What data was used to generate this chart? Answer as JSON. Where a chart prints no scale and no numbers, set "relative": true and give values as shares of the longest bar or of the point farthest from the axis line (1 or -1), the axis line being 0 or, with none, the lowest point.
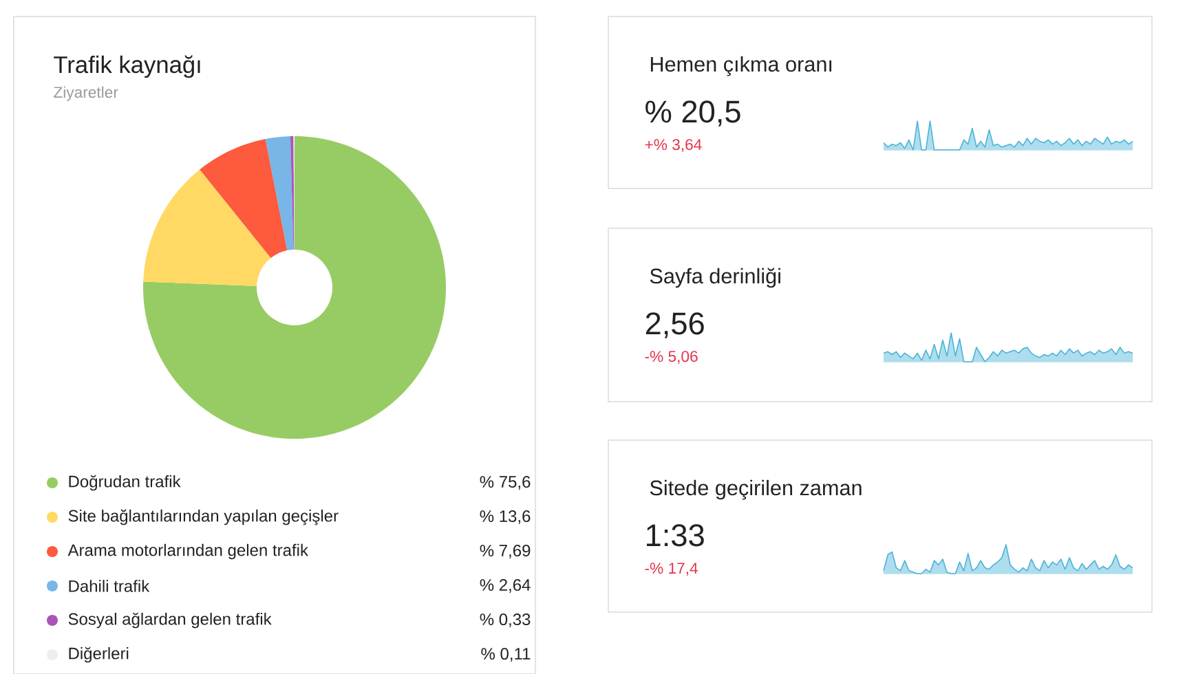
{
  "chart_data": [
    {
      "type": "donut",
      "title": "Trafik kaynağı",
      "subtitle": "Ziyaretler",
      "categories": [
        "Doğrudan trafik",
        "Site bağlantılarından yapılan geçişler",
        "Arama motorlarından gelen trafik",
        "Dahili trafik",
        "Sosyal ağlardan gelen trafik",
        "Diğerleri"
      ],
      "values": [
        75.6,
        13.6,
        7.69,
        2.64,
        0.33,
        0.11
      ],
      "value_labels": [
        "% 75,6",
        "% 13,6",
        "% 7,69",
        "% 2,64",
        "% 0,33",
        "% 0,11"
      ],
      "colors": [
        "#97cc64",
        "#ffd963",
        "#fd5a3e",
        "#77b6e7",
        "#a955b8",
        "#eeeeee"
      ],
      "legend": "bottom"
    },
    {
      "type": "area",
      "title": "Hemen çıkma oranı",
      "annotations": [
        "% 20,5",
        "+% 3,64"
      ],
      "relative": true,
      "color": "#4ab3d8",
      "categories": [
        null,
        null,
        null,
        null,
        null,
        null,
        null,
        null,
        null,
        null,
        null,
        null,
        null,
        null,
        null,
        null,
        null,
        null,
        null,
        null,
        null,
        null,
        null,
        null,
        null,
        null,
        null,
        null,
        null,
        null,
        null,
        null,
        null,
        null,
        null,
        null,
        null,
        null,
        null,
        null,
        null,
        null,
        null,
        null,
        null,
        null,
        null,
        null,
        null,
        null,
        null,
        null,
        null,
        null,
        null,
        null,
        null,
        null,
        null,
        null
      ],
      "values": [
        0.25,
        0.1,
        0.2,
        0.15,
        0.25,
        0.05,
        0.35,
        0,
        1,
        0,
        0,
        1,
        0,
        0,
        0,
        0,
        0,
        0,
        0,
        0.35,
        0.2,
        0.75,
        0.1,
        0.3,
        0.1,
        0.7,
        0.15,
        0.2,
        0.1,
        0.15,
        0.2,
        0.1,
        0.3,
        0.15,
        0.4,
        0.2,
        0.4,
        0.3,
        0.25,
        0.35,
        0.2,
        0.3,
        0.15,
        0.25,
        0.4,
        0.2,
        0.35,
        0.15,
        0.3,
        0.2,
        0.4,
        0.3,
        0.2,
        0.45,
        0.2,
        0.3,
        0.25,
        0.35,
        0.2,
        0.3
      ]
    },
    {
      "type": "area",
      "title": "Sayfa derinliği",
      "annotations": [
        "2,56",
        "-% 5,06"
      ],
      "relative": true,
      "color": "#4ab3d8",
      "categories": [
        null,
        null,
        null,
        null,
        null,
        null,
        null,
        null,
        null,
        null,
        null,
        null,
        null,
        null,
        null,
        null,
        null,
        null,
        null,
        null,
        null,
        null,
        null,
        null,
        null,
        null,
        null,
        null,
        null,
        null,
        null,
        null,
        null,
        null,
        null,
        null,
        null,
        null,
        null,
        null,
        null,
        null,
        null,
        null,
        null,
        null,
        null,
        null,
        null,
        null,
        null,
        null,
        null,
        null,
        null,
        null,
        null,
        null,
        null,
        null
      ],
      "values": [
        0.3,
        0.35,
        0.25,
        0.35,
        0.15,
        0.3,
        0.2,
        0.1,
        0.3,
        0.05,
        0.4,
        0.1,
        0.6,
        0.1,
        0.75,
        0.2,
        1,
        0.2,
        0.8,
        0,
        0,
        0,
        0.5,
        0.25,
        0,
        0.15,
        0.35,
        0.2,
        0.4,
        0.3,
        0.35,
        0.4,
        0.3,
        0.45,
        0.5,
        0.3,
        0.2,
        0.15,
        0.25,
        0.2,
        0.3,
        0.2,
        0.4,
        0.25,
        0.45,
        0.3,
        0.4,
        0.2,
        0.3,
        0.35,
        0.25,
        0.4,
        0.3,
        0.35,
        0.45,
        0.25,
        0.5,
        0.3,
        0.35,
        0.3
      ]
    },
    {
      "type": "area",
      "title": "Sitede geçirilen zaman",
      "annotations": [
        "1:33",
        "-% 17,4"
      ],
      "relative": true,
      "color": "#4ab3d8",
      "categories": [
        null,
        null,
        null,
        null,
        null,
        null,
        null,
        null,
        null,
        null,
        null,
        null,
        null,
        null,
        null,
        null,
        null,
        null,
        null,
        null,
        null,
        null,
        null,
        null,
        null,
        null,
        null,
        null,
        null,
        null,
        null,
        null,
        null,
        null,
        null,
        null,
        null,
        null,
        null,
        null,
        null,
        null,
        null,
        null,
        null,
        null,
        null,
        null,
        null,
        null,
        null,
        null,
        null,
        null,
        null,
        null,
        null,
        null,
        null,
        null
      ],
      "values": [
        0.1,
        0.65,
        0.75,
        0.2,
        0.1,
        0.45,
        0.1,
        0.05,
        0,
        0,
        0.15,
        0.05,
        0.45,
        0.3,
        0.5,
        0.05,
        0,
        0,
        0.4,
        0.1,
        0.7,
        0.1,
        0.2,
        0.45,
        0.2,
        0.15,
        0.3,
        0.4,
        0.55,
        1,
        0.3,
        0.15,
        0.05,
        0.2,
        0.1,
        0.5,
        0.2,
        0.1,
        0.45,
        0.2,
        0.4,
        0.3,
        0.5,
        0.15,
        0.55,
        0.2,
        0.1,
        0.35,
        0.15,
        0.3,
        0.45,
        0.15,
        0.25,
        0.15,
        0.3,
        0.65,
        0.25,
        0.15,
        0.3,
        0.2
      ]
    }
  ]
}
